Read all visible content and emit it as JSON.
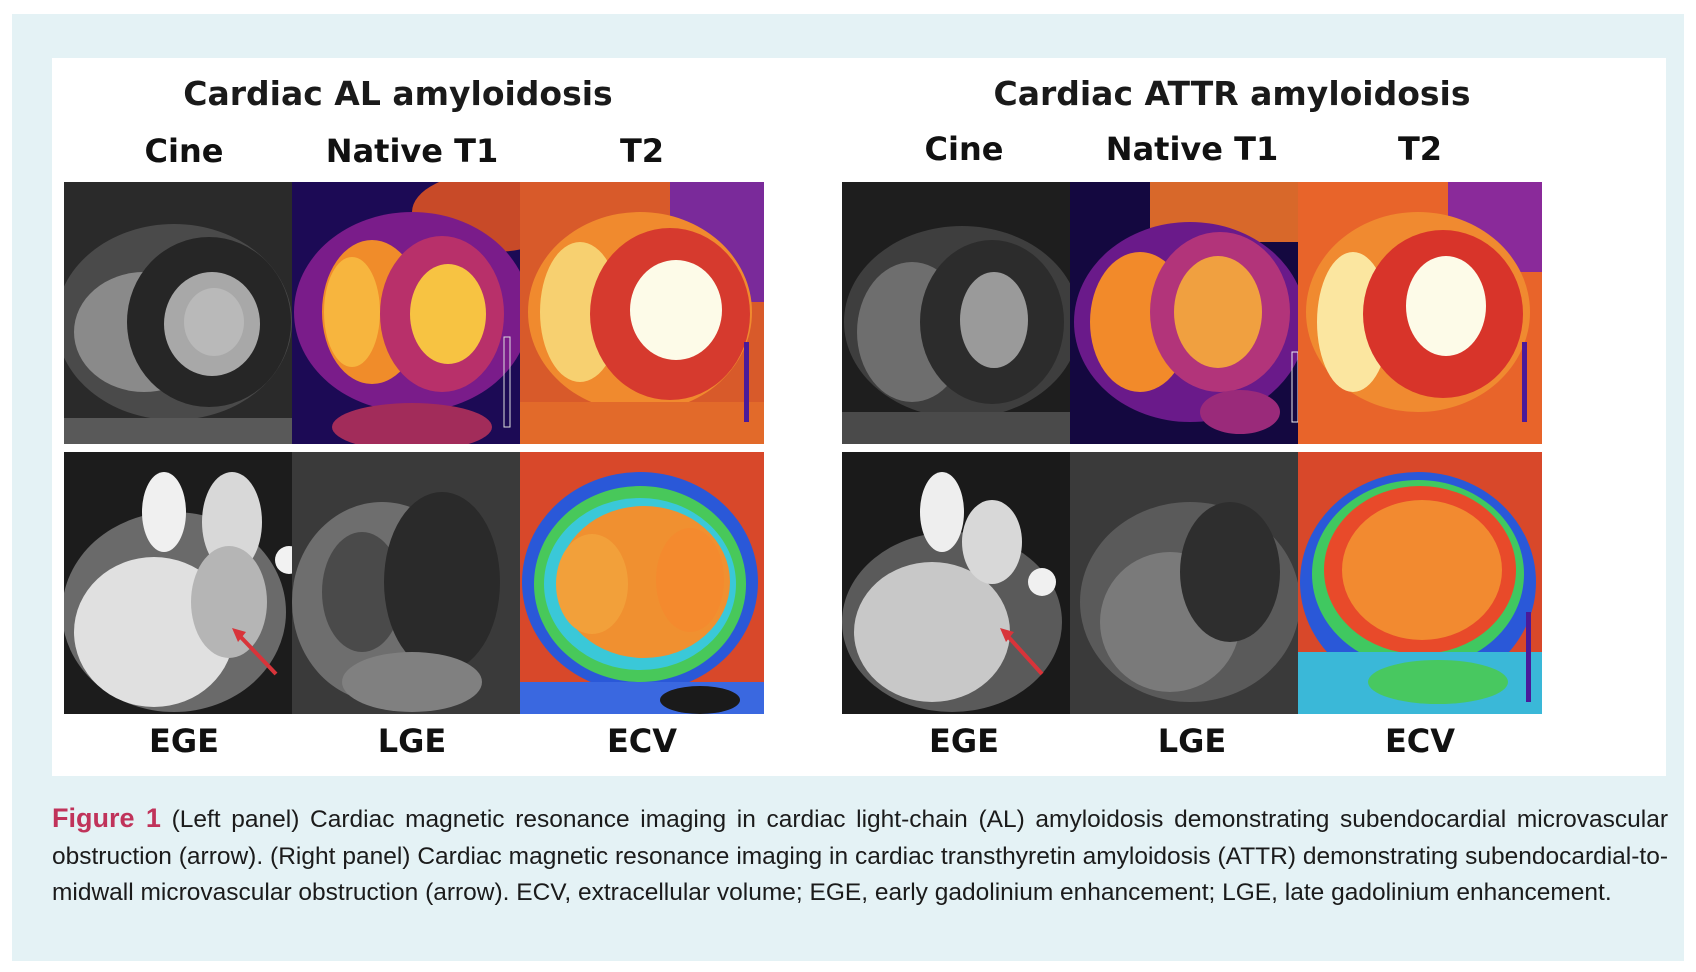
{
  "panels": {
    "left": {
      "title": "Cardiac AL amyloidosis",
      "top_labels": [
        "Cine",
        "Native T1",
        "T2"
      ],
      "bottom_labels": [
        "EGE",
        "LGE",
        "ECV"
      ]
    },
    "right": {
      "title": "Cardiac ATTR amyloidosis",
      "top_labels": [
        "Cine",
        "Native T1",
        "T2"
      ],
      "bottom_labels": [
        "EGE",
        "LGE",
        "ECV"
      ]
    }
  },
  "caption": {
    "label": "Figure 1",
    "text": "(Left panel) Cardiac magnetic resonance imaging in cardiac light-chain (AL) amyloidosis demonstrating subendocardial microvascular obstruction (arrow). (Right panel) Cardiac magnetic resonance imaging in cardiac transthyretin amyloidosis (ATTR) demonstrating subendocardial-to-midwall microvascular obstruction (arrow). ECV, extracellular volume; EGE, early gadolinium enhancement; LGE, late gadolinium enhancement."
  },
  "colors": {
    "background_frame": "#e4f2f5",
    "figure_label": "#c0335a",
    "arrow": "#d8343a"
  },
  "image_types": [
    "grayscale-mri",
    "inferno-colormap-mri",
    "rainbow-colormap-mri"
  ]
}
